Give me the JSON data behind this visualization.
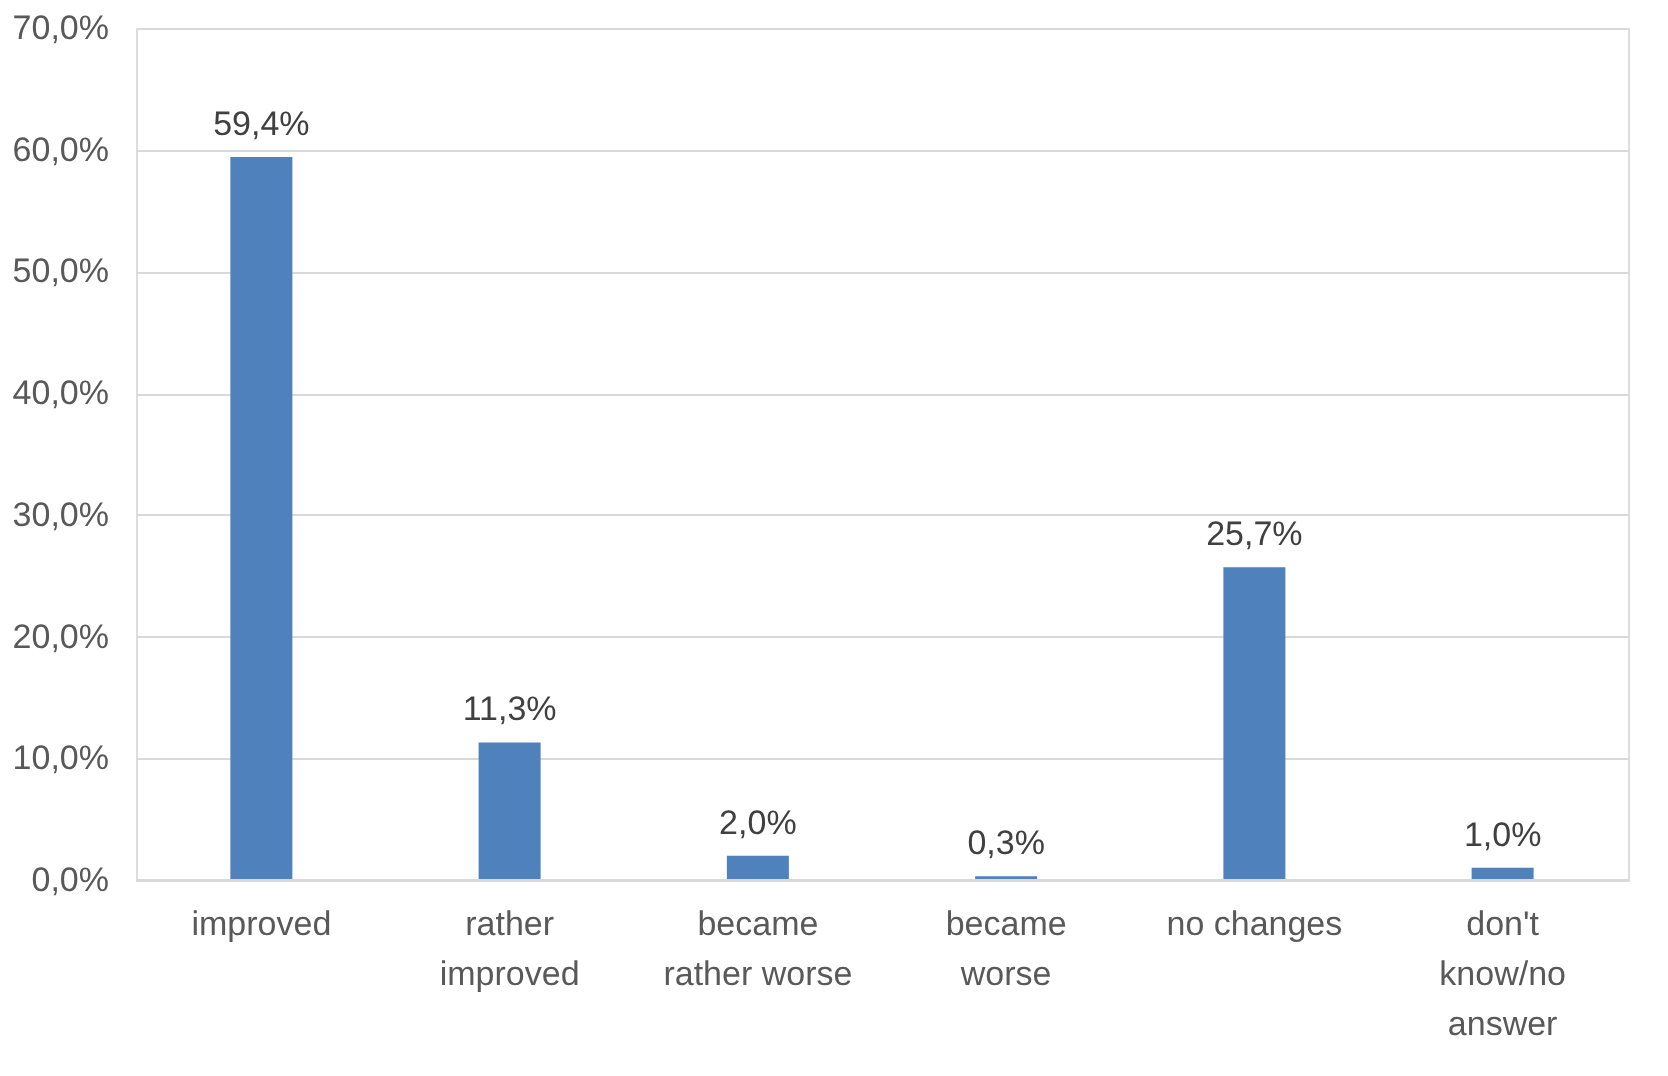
{
  "chart_data": {
    "type": "bar",
    "categories": [
      "improved",
      "rather\nimproved",
      "became\nrather worse",
      "became\nworse",
      "no changes",
      "don't\nknow/no\nanswer"
    ],
    "values": [
      59.4,
      11.3,
      2.0,
      0.3,
      25.7,
      1.0
    ],
    "value_labels": [
      "59,4%",
      "11,3%",
      "2,0%",
      "0,3%",
      "25,7%",
      "1,0%"
    ],
    "color": "#4f81bd",
    "ylim": [
      0,
      70
    ],
    "yticks": [
      {
        "value": 0,
        "label": "0,0%"
      },
      {
        "value": 10,
        "label": "10,0%"
      },
      {
        "value": 20,
        "label": "20,0%"
      },
      {
        "value": 30,
        "label": "30,0%"
      },
      {
        "value": 40,
        "label": "40,0%"
      },
      {
        "value": 50,
        "label": "50,0%"
      },
      {
        "value": 60,
        "label": "60,0%"
      },
      {
        "value": 70,
        "label": "70,0%"
      }
    ],
    "grid": "y"
  }
}
